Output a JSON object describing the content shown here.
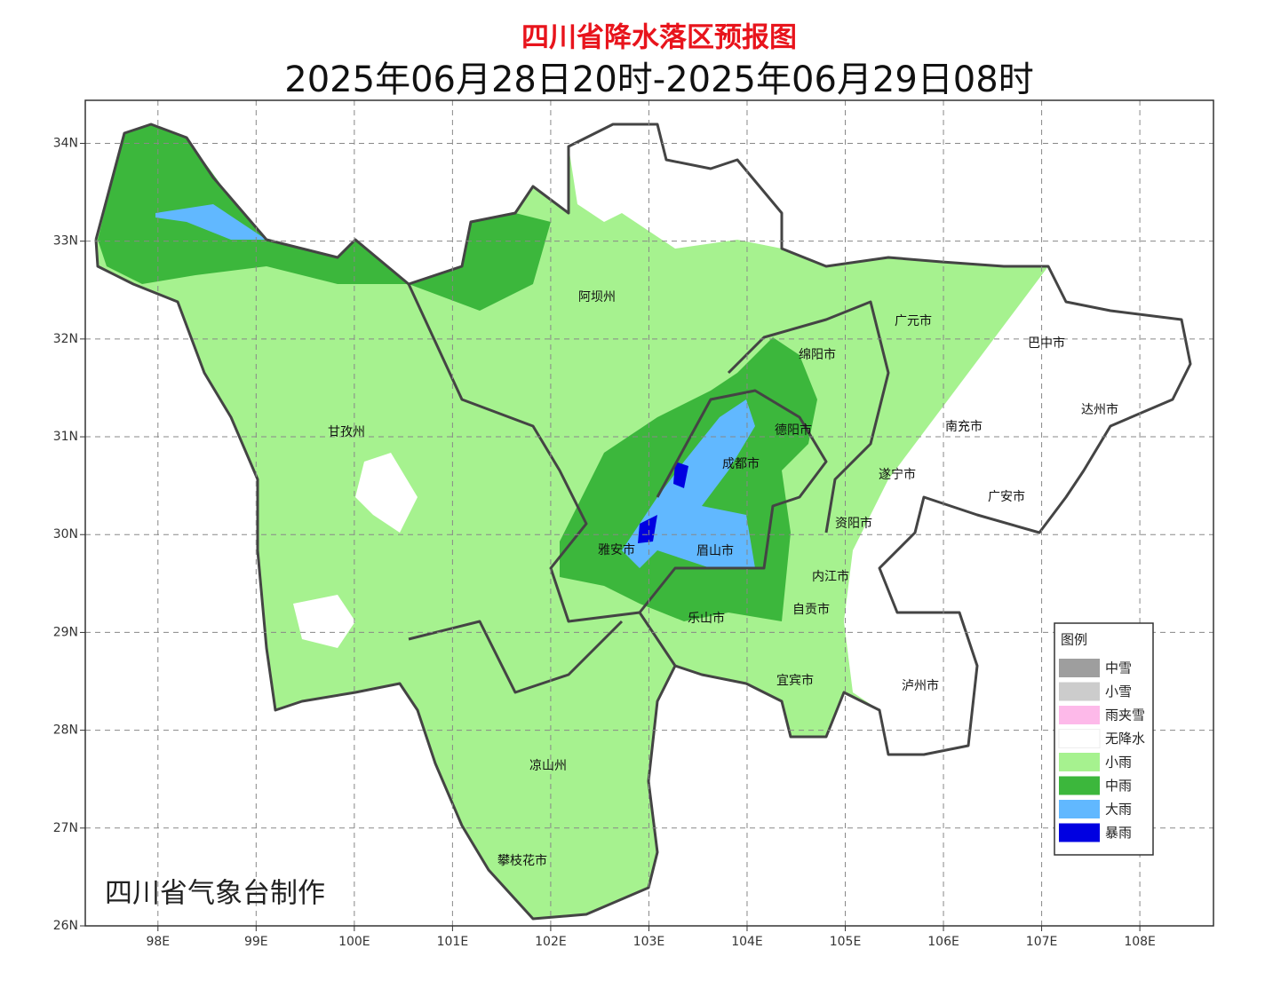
{
  "title": "四川省降水落区预报图",
  "subtitle": "2025年06月28日20时-2025年06月29日08时",
  "map": {
    "xlim": [
      97.26,
      108.75
    ],
    "ylim": [
      26,
      34.44
    ],
    "xticks": [
      {
        "value": 98,
        "label": "98E"
      },
      {
        "value": 99,
        "label": "99E"
      },
      {
        "value": 100,
        "label": "100E"
      },
      {
        "value": 101,
        "label": "101E"
      },
      {
        "value": 102,
        "label": "102E"
      },
      {
        "value": 103,
        "label": "103E"
      },
      {
        "value": 104,
        "label": "104E"
      },
      {
        "value": 105,
        "label": "105E"
      },
      {
        "value": 106,
        "label": "106E"
      },
      {
        "value": 107,
        "label": "107E"
      },
      {
        "value": 108,
        "label": "108E"
      }
    ],
    "yticks": [
      {
        "value": 26,
        "label": "26N"
      },
      {
        "value": 27,
        "label": "27N"
      },
      {
        "value": 28,
        "label": "28N"
      },
      {
        "value": 29,
        "label": "29N"
      },
      {
        "value": 30,
        "label": "30N"
      },
      {
        "value": 31,
        "label": "31N"
      },
      {
        "value": 32,
        "label": "32N"
      },
      {
        "value": 33,
        "label": "33N"
      },
      {
        "value": 34,
        "label": "34N"
      }
    ],
    "grid": true,
    "regions": [
      "阿坝州",
      "甘孜州",
      "凉山州",
      "攀枝花市",
      "绵阳市",
      "广元市",
      "巴中市",
      "达州市",
      "南充市",
      "德阳市",
      "成都市",
      "遂宁市",
      "广安市",
      "资阳市",
      "雅安市",
      "眉山市",
      "内江市",
      "乐山市",
      "自贡市",
      "宜宾市",
      "泸州市"
    ]
  },
  "legend": {
    "title": "图例",
    "items": [
      {
        "name": "中雪",
        "color": "#9e9e9e"
      },
      {
        "name": "小雪",
        "color": "#cccccc"
      },
      {
        "name": "雨夹雪",
        "color": "#fdb9e9"
      },
      {
        "name": "无降水",
        "color": "#ffffff"
      },
      {
        "name": "小雨",
        "color": "#a6f28f"
      },
      {
        "name": "中雨",
        "color": "#3cb73c"
      },
      {
        "name": "大雨",
        "color": "#61b8ff"
      },
      {
        "name": "暴雨",
        "color": "#0000e1"
      }
    ]
  },
  "credit": "四川省气象台制作"
}
